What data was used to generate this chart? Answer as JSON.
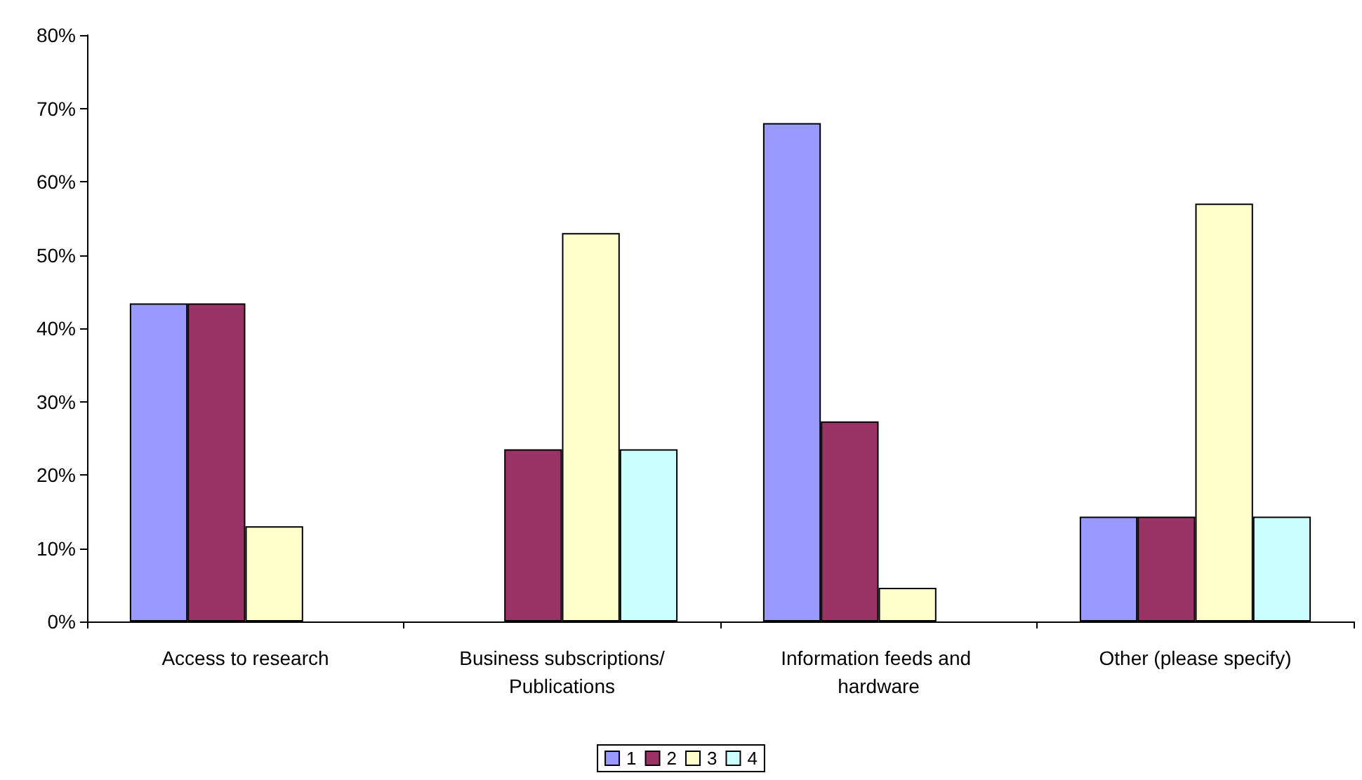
{
  "chart_data": {
    "type": "bar",
    "categories": [
      "Access to research",
      "Business subscriptions/Publications",
      "Information feeds and hardware",
      "Other (please specify)"
    ],
    "series": [
      {
        "name": "1",
        "color": "#9999ff",
        "values": [
          43.4,
          null,
          68.0,
          14.3
        ]
      },
      {
        "name": "2",
        "color": "#993366",
        "values": [
          43.4,
          23.5,
          27.3,
          14.3
        ]
      },
      {
        "name": "3",
        "color": "#ffffcc",
        "values": [
          13.0,
          53.0,
          4.6,
          57.0
        ]
      },
      {
        "name": "4",
        "color": "#ccffff",
        "values": [
          null,
          23.5,
          null,
          14.3
        ]
      }
    ],
    "ylim": [
      0,
      80
    ],
    "yticks": [
      {
        "value": 0,
        "label": "0%"
      },
      {
        "value": 10,
        "label": "10%"
      },
      {
        "value": 20,
        "label": "20%"
      },
      {
        "value": 30,
        "label": "30%"
      },
      {
        "value": 40,
        "label": "40%"
      },
      {
        "value": 50,
        "label": "50%"
      },
      {
        "value": 60,
        "label": "60%"
      },
      {
        "value": 70,
        "label": "70%"
      },
      {
        "value": 80,
        "label": "80%"
      }
    ],
    "grid": false,
    "legend": "bottom"
  }
}
